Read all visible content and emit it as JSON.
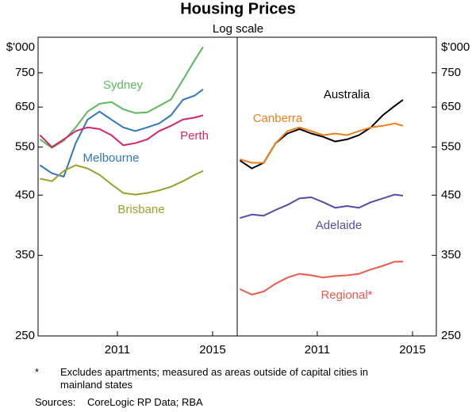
{
  "chart_data": [
    {
      "type": "line",
      "title": "Housing Prices",
      "subtitle": "Log scale",
      "y_label": "$'000",
      "log_scale": true,
      "x": [
        2007.75,
        2008.25,
        2008.75,
        2009.25,
        2009.75,
        2010.25,
        2010.75,
        2011.25,
        2011.75,
        2012.25,
        2012.75,
        2013.25,
        2013.75,
        2014.25,
        2014.6
      ],
      "xlim": [
        2007.67,
        2016
      ],
      "xticks": [
        2011,
        2015
      ],
      "ylim": [
        250,
        870
      ],
      "yticks": [
        250,
        350,
        450,
        550,
        650,
        750
      ],
      "series": [
        {
          "name": "Sydney",
          "color": "#5cb85c",
          "values": [
            568,
            548,
            565,
            597,
            638,
            659,
            664,
            644,
            634,
            636,
            653,
            671,
            728,
            791,
            836
          ]
        },
        {
          "name": "Melbourne",
          "color": "#2f78c0",
          "values": [
            510,
            493,
            486,
            559,
            617,
            638,
            617,
            597,
            588,
            597,
            607,
            628,
            670,
            682,
            700
          ]
        },
        {
          "name": "Perth",
          "color": "#d4246e",
          "values": [
            578,
            550,
            568,
            588,
            597,
            593,
            578,
            554,
            559,
            568,
            588,
            601,
            617,
            622,
            628
          ]
        },
        {
          "name": "Brisbane",
          "color": "#9aa02c",
          "values": [
            482,
            477,
            498,
            510,
            503,
            490,
            471,
            454,
            451,
            454,
            459,
            466,
            477,
            490,
            498
          ]
        }
      ]
    },
    {
      "type": "line",
      "y_label": "$'000",
      "log_scale": true,
      "x": [
        2007.75,
        2008.25,
        2008.75,
        2009.25,
        2009.75,
        2010.25,
        2010.75,
        2011.25,
        2011.75,
        2012.25,
        2012.75,
        2013.25,
        2013.75,
        2014.25,
        2014.6
      ],
      "xlim": [
        2007.67,
        2016
      ],
      "xticks": [
        2011,
        2015
      ],
      "ylim": [
        250,
        870
      ],
      "yticks": [
        250,
        350,
        450,
        550,
        650,
        750
      ],
      "series": [
        {
          "name": "Australia",
          "color": "#000000",
          "values": [
            520,
            503,
            515,
            559,
            582,
            593,
            582,
            574,
            563,
            568,
            578,
            597,
            628,
            653,
            670
          ]
        },
        {
          "name": "Canberra",
          "color": "#f07d1a",
          "values": [
            523,
            515,
            515,
            559,
            588,
            597,
            588,
            578,
            582,
            578,
            588,
            597,
            601,
            607,
            601
          ]
        },
        {
          "name": "Adelaide",
          "color": "#5a4aa8",
          "values": [
            409,
            415,
            413,
            423,
            432,
            444,
            446,
            437,
            427,
            430,
            427,
            437,
            444,
            451,
            449
          ]
        },
        {
          "name": "Regional*",
          "color": "#ec5a4f",
          "values": [
            304,
            297,
            301,
            311,
            319,
            324,
            322,
            319,
            321,
            322,
            324,
            330,
            335,
            341,
            341
          ]
        }
      ]
    }
  ],
  "notes": {
    "marker": "*",
    "text": "Excludes apartments; measured as areas outside of capital cities in mainland states"
  },
  "sources": {
    "label": "Sources:",
    "text": "CoreLogic RP Data; RBA"
  }
}
